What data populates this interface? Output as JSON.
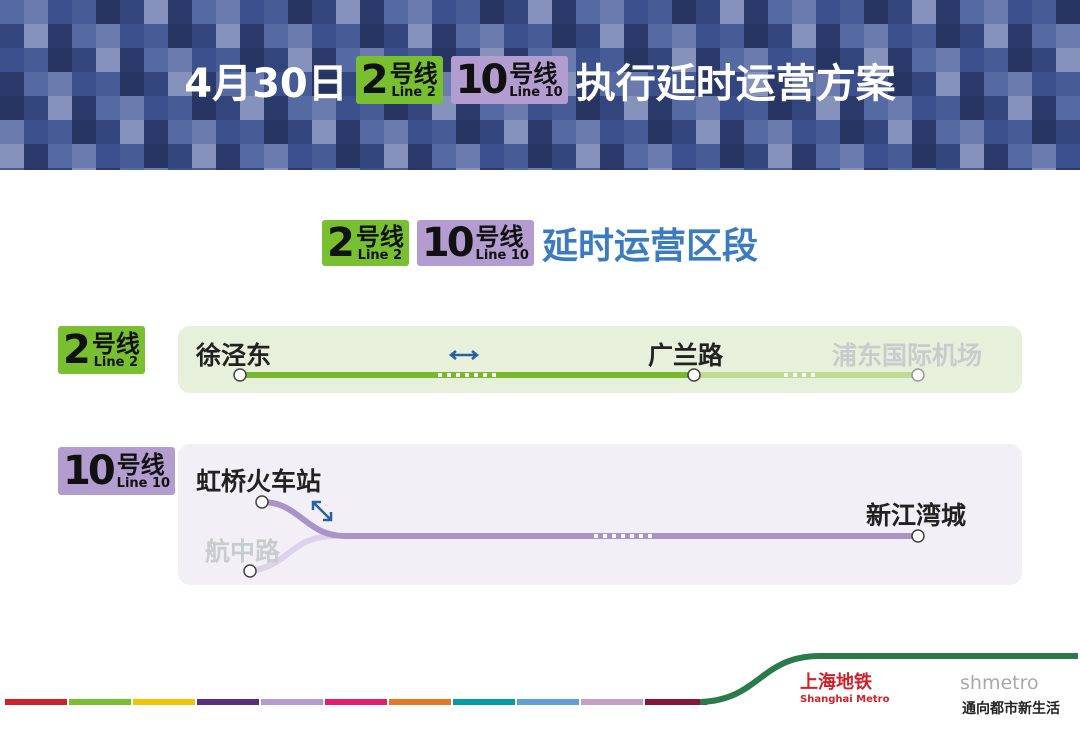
{
  "header": {
    "date": "4月30日",
    "suffix": "执行延时运营方案"
  },
  "badges": {
    "line2": {
      "number": "2",
      "hao": "号线",
      "en": "Line 2"
    },
    "line10": {
      "number": "10",
      "hao": "号线",
      "en": "Line 10"
    }
  },
  "subtitle": "延时运营区段",
  "line2": {
    "stations": [
      "徐泾东",
      "广兰路",
      "浦东国际机场"
    ]
  },
  "line10": {
    "stations": [
      "虹桥火车站",
      "航中路",
      "新江湾城"
    ]
  },
  "footer": {
    "logo_cn": "上海地铁",
    "logo_en": "Shanghai Metro",
    "watermark": "shmetro",
    "slogan": "通向都市新生活"
  }
}
